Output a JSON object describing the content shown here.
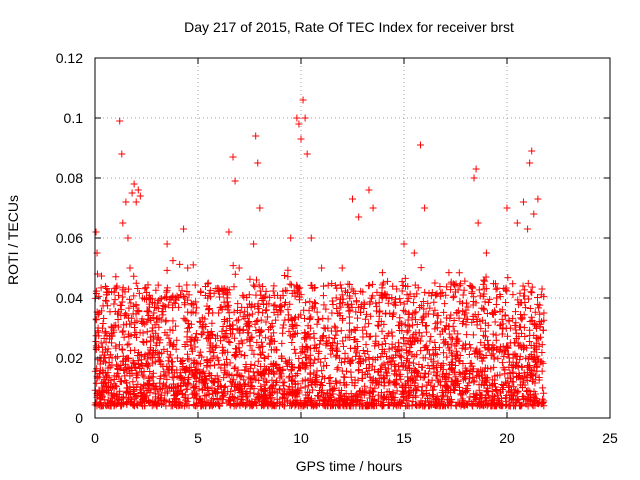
{
  "chart_data": {
    "type": "scatter",
    "title": "Day 217 of 2015, Rate Of TEC Index for receiver brst",
    "xlabel": "GPS time / hours",
    "ylabel": "ROTI / TECUs",
    "xlim": [
      0,
      25
    ],
    "ylim": [
      0,
      0.12
    ],
    "xticks": [
      0,
      5,
      10,
      15,
      20,
      25
    ],
    "yticks": [
      0,
      0.02,
      0.04,
      0.06,
      0.08,
      0.1,
      0.12
    ],
    "xtick_labels": [
      "0",
      "5",
      "10",
      "15",
      "20",
      "25"
    ],
    "ytick_labels": [
      "0",
      "0.02",
      "0.04",
      "0.06",
      "0.08",
      "0.1",
      "0.12"
    ],
    "grid": true,
    "marker": "+",
    "color": "#ff0000",
    "series": [
      {
        "x": [
          0.05,
          0.12,
          0.2,
          0.3,
          0.4,
          0.1,
          0.15,
          0.25,
          0.35,
          0.5,
          1.0,
          1.2,
          1.3,
          1.35,
          1.5,
          1.6,
          1.7,
          1.8,
          1.9,
          2.0,
          2.1,
          2.2,
          2.3,
          2.5,
          3.0,
          3.5,
          3.7,
          4.0,
          4.3,
          4.5,
          5.0,
          5.5,
          6.0,
          6.5,
          6.7,
          6.8,
          7.0,
          7.5,
          7.7,
          7.8,
          7.9,
          8.0,
          8.5,
          9.0,
          9.5,
          9.8,
          9.9,
          10.0,
          10.1,
          10.2,
          10.3,
          10.5,
          11.0,
          11.5,
          12.0,
          12.5,
          12.8,
          13.0,
          13.3,
          13.5,
          14.0,
          14.5,
          15.0,
          15.5,
          15.8,
          16.0,
          16.5,
          17.0,
          17.5,
          18.0,
          18.4,
          18.5,
          18.6,
          19.0,
          19.5,
          20.0,
          20.5,
          20.8,
          21.0,
          21.1,
          21.2,
          21.3,
          21.5,
          21.7,
          0.6,
          2.8,
          5.2,
          8.3,
          11.3,
          14.8,
          17.2,
          19.8,
          0.8,
          3.2,
          6.2,
          9.2,
          12.2,
          15.2,
          18.2,
          20.2
        ],
        "y": [
          0.062,
          0.048,
          0.035,
          0.02,
          0.012,
          0.055,
          0.03,
          0.018,
          0.01,
          0.015,
          0.02,
          0.099,
          0.088,
          0.065,
          0.072,
          0.06,
          0.05,
          0.075,
          0.078,
          0.072,
          0.076,
          0.074,
          0.04,
          0.018,
          0.025,
          0.058,
          0.04,
          0.02,
          0.063,
          0.05,
          0.018,
          0.045,
          0.035,
          0.062,
          0.087,
          0.079,
          0.05,
          0.038,
          0.058,
          0.094,
          0.085,
          0.07,
          0.025,
          0.04,
          0.06,
          0.1,
          0.098,
          0.093,
          0.106,
          0.1,
          0.088,
          0.06,
          0.05,
          0.035,
          0.05,
          0.073,
          0.067,
          0.042,
          0.076,
          0.07,
          0.045,
          0.035,
          0.058,
          0.055,
          0.091,
          0.07,
          0.045,
          0.025,
          0.042,
          0.035,
          0.08,
          0.083,
          0.065,
          0.055,
          0.04,
          0.07,
          0.065,
          0.072,
          0.063,
          0.085,
          0.089,
          0.068,
          0.073,
          0.043,
          0.022,
          0.03,
          0.028,
          0.032,
          0.03,
          0.032,
          0.028,
          0.03,
          0.008,
          0.006,
          0.007,
          0.009,
          0.006,
          0.008,
          0.007,
          0.006
        ]
      }
    ],
    "band": {
      "note_free": true,
      "x_start": 0,
      "x_end": 21.8,
      "y_min": 0.004,
      "y_typical": 0.025,
      "y_max": 0.045
    }
  }
}
